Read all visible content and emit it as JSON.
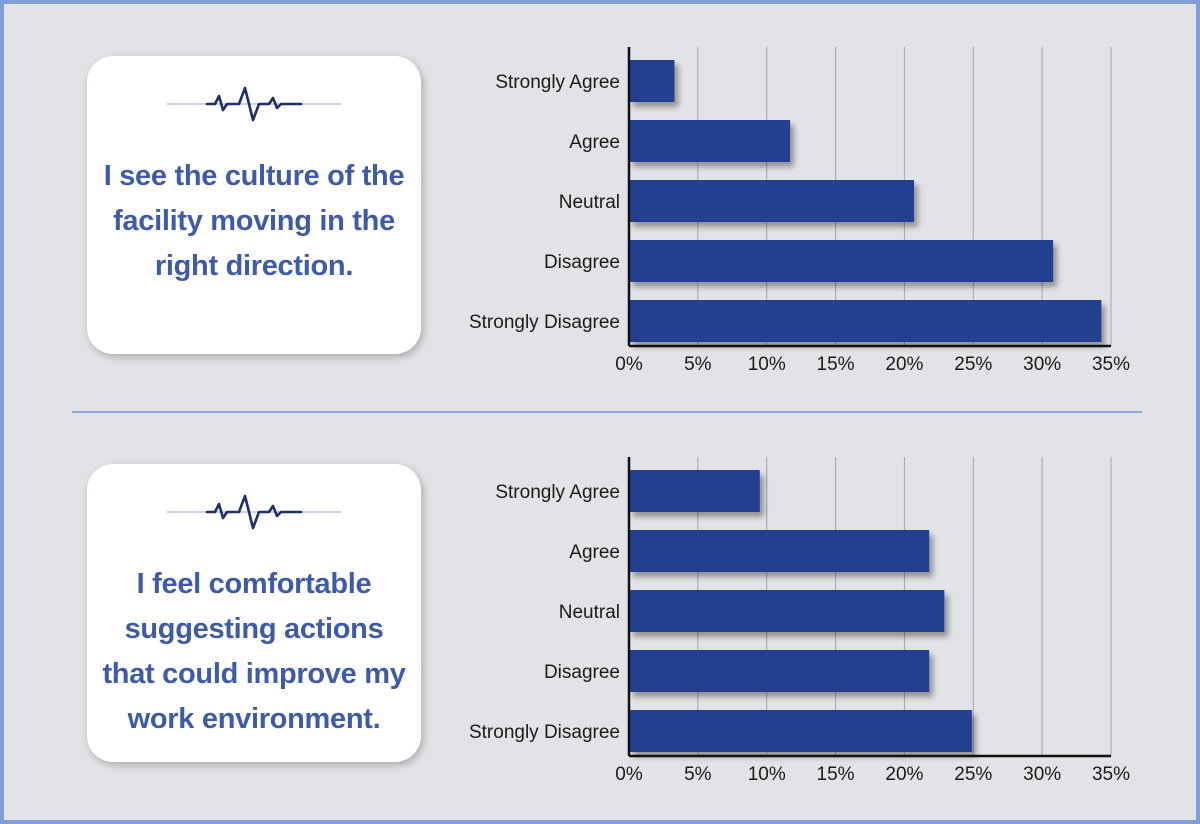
{
  "panels": [
    {
      "statement_lines": [
        "I see the culture of the",
        "facility moving in the",
        "right direction."
      ]
    },
    {
      "statement_lines": [
        "I feel comfortable",
        "suggesting actions",
        "that could improve my",
        "work environment."
      ]
    }
  ],
  "chart_data": [
    {
      "type": "bar",
      "orientation": "horizontal",
      "categories": [
        "Strongly Agree",
        "Agree",
        "Neutral",
        "Disagree",
        "Strongly Disagree"
      ],
      "values": [
        3.3,
        11.7,
        20.7,
        30.8,
        34.3
      ],
      "xticks": [
        "0%",
        "5%",
        "10%",
        "15%",
        "20%",
        "25%",
        "30%",
        "35%"
      ],
      "xlim": [
        0,
        35
      ],
      "grid": true,
      "bar_color": "#21418f"
    },
    {
      "type": "bar",
      "orientation": "horizontal",
      "categories": [
        "Strongly Agree",
        "Agree",
        "Neutral",
        "Disagree",
        "Strongly Disagree"
      ],
      "values": [
        9.5,
        21.8,
        22.9,
        21.8,
        24.9
      ],
      "xticks": [
        "0%",
        "5%",
        "10%",
        "15%",
        "20%",
        "25%",
        "30%",
        "35%"
      ],
      "xlim": [
        0,
        35
      ],
      "grid": true,
      "bar_color": "#21418f"
    }
  ]
}
